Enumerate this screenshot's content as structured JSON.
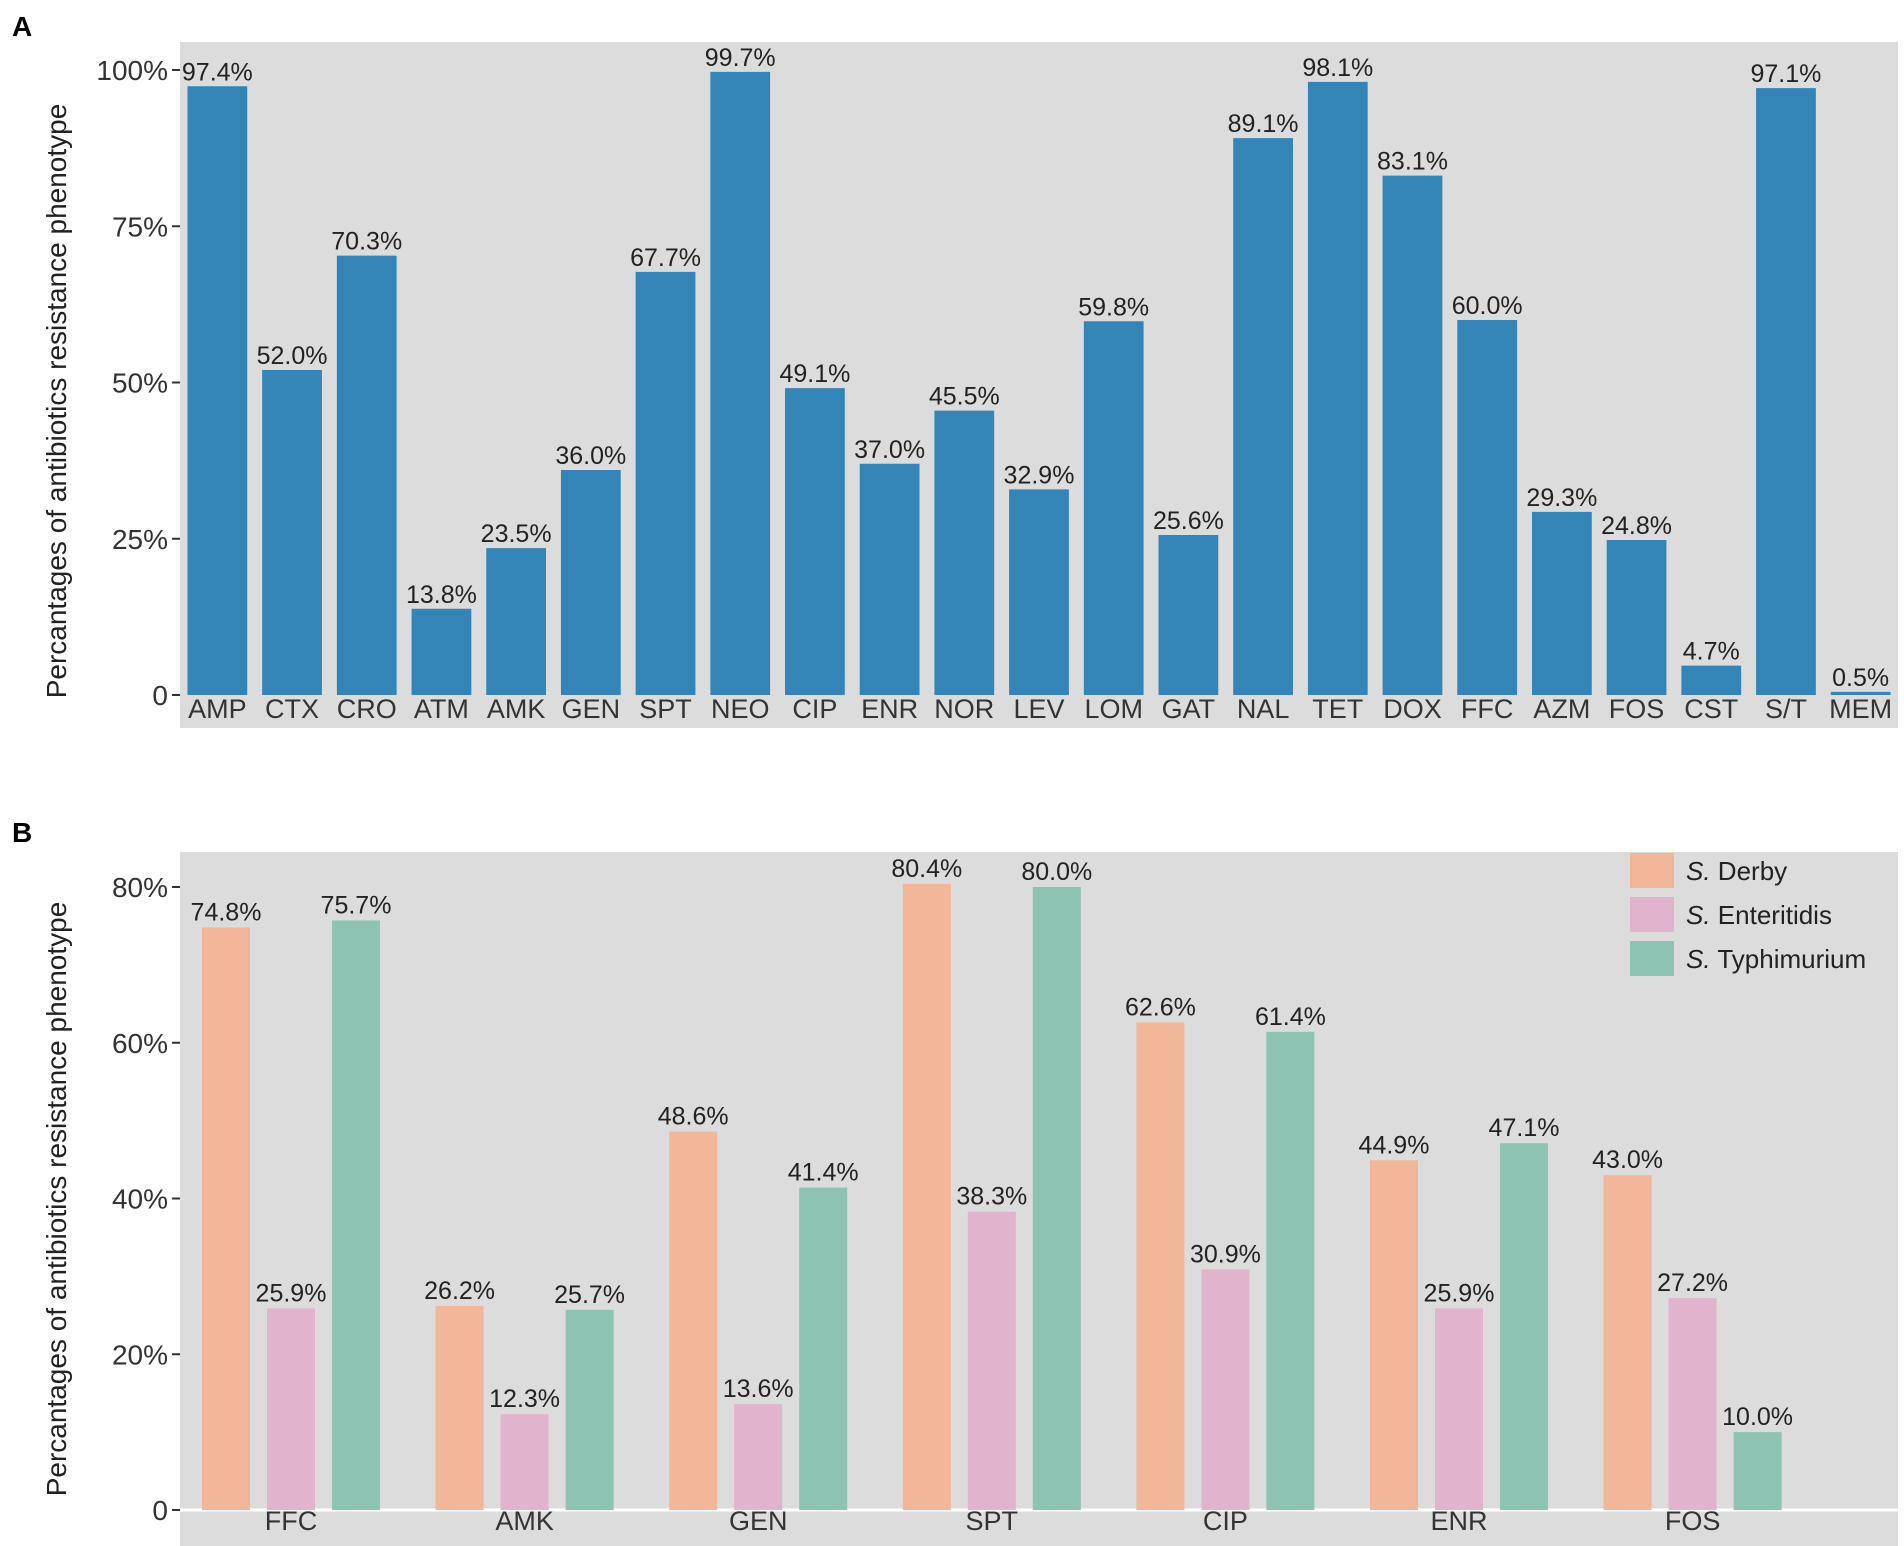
{
  "chart_data": [
    {
      "type": "bar",
      "panel_label": "A",
      "ylabel": "Percantages of antibiotics resistance phenotype",
      "ylim": [
        0,
        100
      ],
      "yticks": [
        0,
        25,
        50,
        75,
        100
      ],
      "ytick_labels": [
        "0",
        "25%",
        "50%",
        "75%",
        "100%"
      ],
      "categories": [
        "AMP",
        "CTX",
        "CRO",
        "ATM",
        "AMK",
        "GEN",
        "SPT",
        "NEO",
        "CIP",
        "ENR",
        "NOR",
        "LEV",
        "LOM",
        "GAT",
        "NAL",
        "TET",
        "DOX",
        "FFC",
        "AZM",
        "FOS",
        "CST",
        "S/T",
        "MEM"
      ],
      "values": [
        97.4,
        52.0,
        70.3,
        13.8,
        23.5,
        36.0,
        67.7,
        99.7,
        49.1,
        37.0,
        45.5,
        32.9,
        59.8,
        25.6,
        89.1,
        98.1,
        83.1,
        60.0,
        29.3,
        24.8,
        4.7,
        97.1,
        0.5
      ],
      "value_labels": [
        "97.4%",
        "52.0%",
        "70.3%",
        "13.8%",
        "23.5%",
        "36.0%",
        "67.7%",
        "99.7%",
        "49.1%",
        "37.0%",
        "45.5%",
        "32.9%",
        "59.8%",
        "25.6%",
        "89.1%",
        "98.1%",
        "83.1%",
        "60.0%",
        "29.3%",
        "24.8%",
        "4.7%",
        "97.1%",
        "0.5%"
      ],
      "color": "#3384b7",
      "background": "#dcdcdc"
    },
    {
      "type": "bar",
      "panel_label": "B",
      "ylabel": "Percantages of antibiotics resistance phenotype",
      "ylim": [
        0,
        80
      ],
      "yticks": [
        0,
        20,
        40,
        60,
        80
      ],
      "ytick_labels": [
        "0",
        "20%",
        "40%",
        "60%",
        "80%"
      ],
      "categories": [
        "FFC",
        "AMK",
        "GEN",
        "SPT",
        "CIP",
        "ENR",
        "FOS"
      ],
      "series": [
        {
          "name_prefix": "S.",
          "name_suffix": " Derby",
          "color": "#f2b699",
          "values": [
            74.8,
            26.2,
            48.6,
            80.4,
            62.6,
            44.9,
            43.0
          ],
          "value_labels": [
            "74.8%",
            "26.2%",
            "48.6%",
            "80.4%",
            "62.6%",
            "44.9%",
            "43.0%"
          ]
        },
        {
          "name_prefix": "S.",
          "name_suffix": " Enteritidis",
          "color": "#e2b3cc",
          "values": [
            25.9,
            12.3,
            13.6,
            38.3,
            30.9,
            25.9,
            27.2
          ],
          "value_labels": [
            "25.9%",
            "12.3%",
            "13.6%",
            "38.3%",
            "30.9%",
            "25.9%",
            "27.2%"
          ]
        },
        {
          "name_prefix": "S.",
          "name_suffix": " Typhimurium",
          "color": "#8dc3b3",
          "values": [
            75.7,
            25.7,
            41.4,
            80.0,
            61.4,
            47.1,
            10.0
          ],
          "value_labels": [
            "75.7%",
            "25.7%",
            "41.4%",
            "80.0%",
            "61.4%",
            "47.1%",
            "10.0%"
          ]
        }
      ],
      "legend_position": "top-right",
      "background": "#dcdcdc"
    }
  ]
}
